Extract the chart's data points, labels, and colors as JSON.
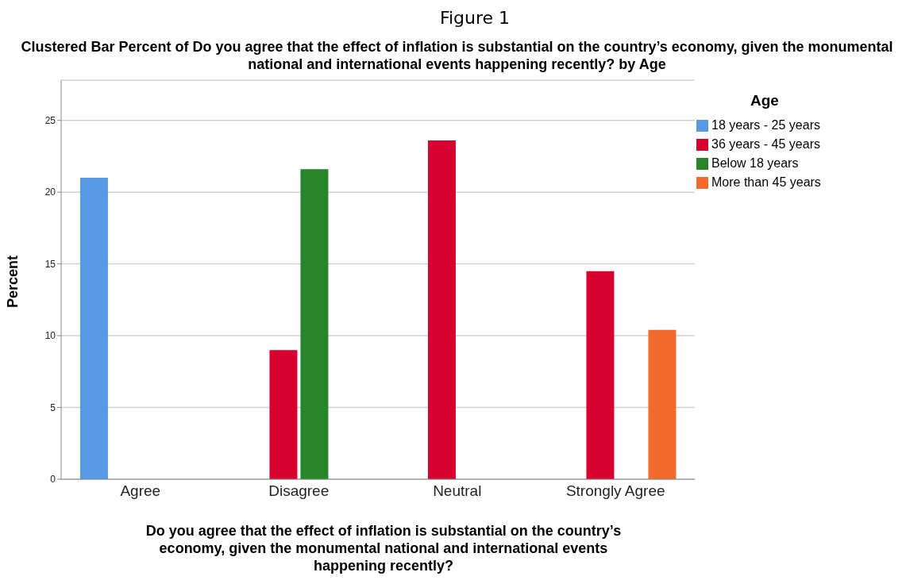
{
  "chart_data": {
    "type": "bar",
    "title": "Figure 1",
    "subtitle": "Clustered Bar Percent of Do you agree that the effect of inflation is substantial on the country’s economy, given the monumental national and international events happening recently? by Age",
    "xlabel": "Do you agree that the effect of inflation is substantial on the country’s economy, given the monumental national and international events happening recently?",
    "ylabel": "Percent",
    "legend_title": "Age",
    "categories": [
      "Agree",
      "Disagree",
      "Neutral",
      "Strongly Agree"
    ],
    "series": [
      {
        "name": "18 years - 25 years",
        "color": "#5799e5",
        "values": [
          21.0,
          null,
          null,
          null
        ]
      },
      {
        "name": "36 years - 45 years",
        "color": "#d8002e",
        "values": [
          null,
          9.0,
          23.6,
          14.5
        ]
      },
      {
        "name": "Below 18 years",
        "color": "#27852a",
        "values": [
          null,
          21.6,
          null,
          null
        ]
      },
      {
        "name": "More than 45 years",
        "color": "#f26b2d",
        "values": [
          null,
          null,
          null,
          10.4
        ]
      }
    ],
    "ylim": [
      0,
      27.8
    ],
    "yticks": [
      0,
      5,
      10,
      15,
      20,
      25
    ],
    "grid": "y",
    "legend": "top right"
  }
}
